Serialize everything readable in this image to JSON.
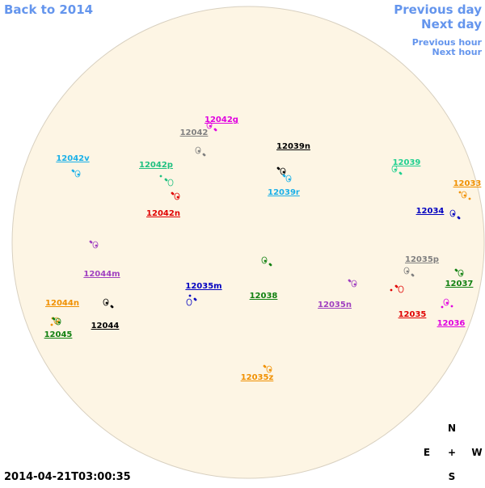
{
  "navigation": {
    "back": "Back to 2014",
    "previous_day": "Previous day",
    "next_day": "Next day",
    "previous_hour": "Previous hour",
    "next_hour": "Next hour"
  },
  "regions": [
    {
      "label": "12042g",
      "color": "#e000e0"
    },
    {
      "label": "12042",
      "color": "#808080"
    },
    {
      "label": "12039n",
      "color": "#000000"
    },
    {
      "label": "12042v",
      "color": "#1ab0e8"
    },
    {
      "label": "12042p",
      "color": "#20c080"
    },
    {
      "label": "12039",
      "color": "#20d090"
    },
    {
      "label": "12033",
      "color": "#f09000"
    },
    {
      "label": "12039r",
      "color": "#1ab0e8"
    },
    {
      "label": "12042n",
      "color": "#e00000"
    },
    {
      "label": "12034",
      "color": "#0000c0"
    },
    {
      "label": "12035p",
      "color": "#808080"
    },
    {
      "label": "12044m",
      "color": "#a040c0"
    },
    {
      "label": "12037",
      "color": "#108010"
    },
    {
      "label": "12035m",
      "color": "#0000c0"
    },
    {
      "label": "12038",
      "color": "#108010"
    },
    {
      "label": "12044n",
      "color": "#f09000"
    },
    {
      "label": "12035n",
      "color": "#a040c0"
    },
    {
      "label": "12035",
      "color": "#e00000"
    },
    {
      "label": "12044",
      "color": "#000000"
    },
    {
      "label": "12036",
      "color": "#e000e0"
    },
    {
      "label": "12045",
      "color": "#108010"
    },
    {
      "label": "12035z",
      "color": "#f09000"
    }
  ],
  "compass": {
    "north": "N",
    "east": "E",
    "center": "+",
    "west": "W",
    "south": "S"
  },
  "timestamp": "2014-04-21T03:00:35"
}
